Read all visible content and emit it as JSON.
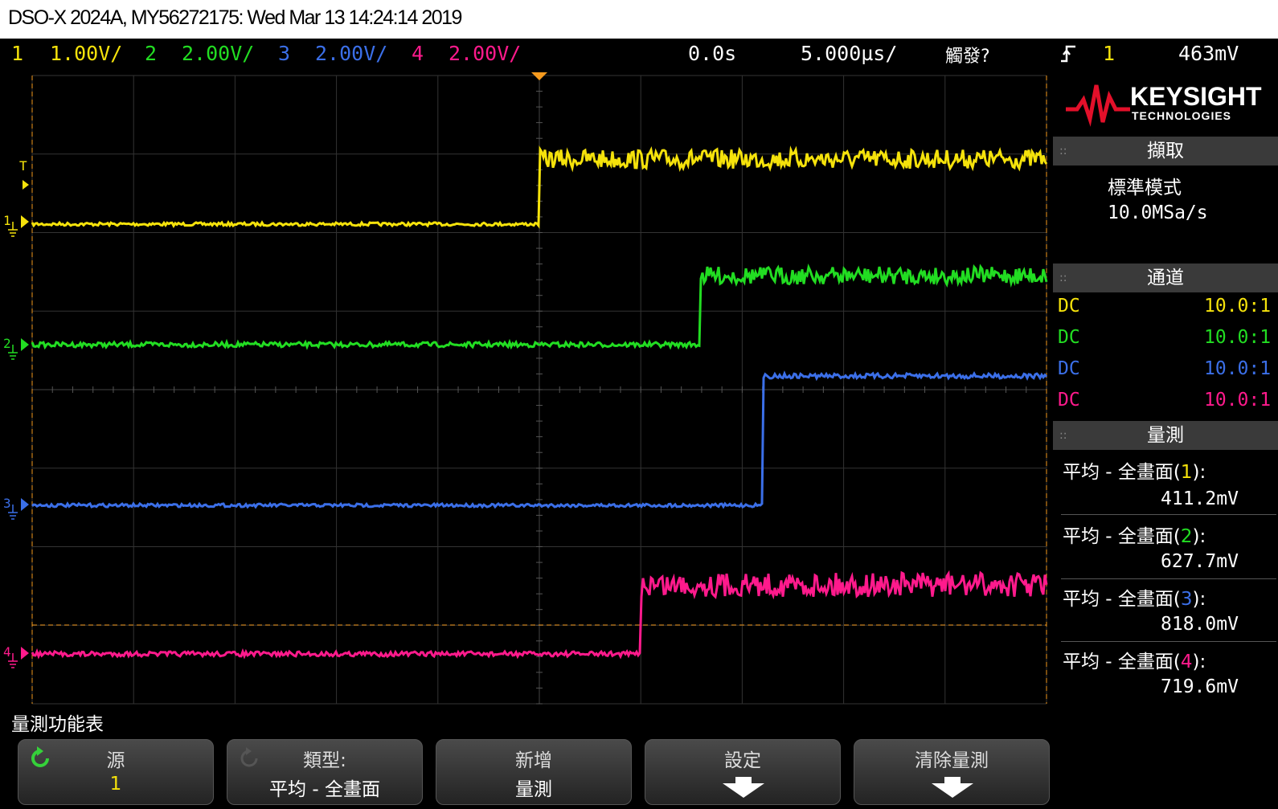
{
  "title": "DSO-X 2024A, MY56272175: Wed Mar 13 14:24:14 2019",
  "status": {
    "ch1_num": "1",
    "ch1_scale": "1.00V/",
    "ch2_num": "2",
    "ch2_scale": "2.00V/",
    "ch3_num": "3",
    "ch3_scale": "2.00V/",
    "ch4_num": "4",
    "ch4_scale": "2.00V/",
    "time_offset": "0.0s",
    "timebase": "5.000µs/",
    "trigger_status": "觸發?",
    "trigger_source": "1",
    "trigger_level": "463mV",
    "trigger_edge_icon": "rising-edge-icon"
  },
  "colors": {
    "ch1": "#f5e20b",
    "ch2": "#22dd22",
    "ch3": "#3b6fe8",
    "ch4": "#ff1a8c",
    "trigger": "#f59a1e"
  },
  "logo": {
    "brand": "KEYSIGHT",
    "sub": "TECHNOLOGIES"
  },
  "panel": {
    "acquire_header": "擷取",
    "acquire_mode": "標準模式",
    "sample_rate": "10.0MSa/s",
    "channel_header": "通道",
    "channels": [
      {
        "coupling": "DC",
        "probe": "10.0:1"
      },
      {
        "coupling": "DC",
        "probe": "10.0:1"
      },
      {
        "coupling": "DC",
        "probe": "10.0:1"
      },
      {
        "coupling": "DC",
        "probe": "10.0:1"
      }
    ],
    "measure_header": "量測",
    "measurements": [
      {
        "label": "平均 - 全畫面",
        "ch": "1",
        "value": "411.2mV"
      },
      {
        "label": "平均 - 全畫面",
        "ch": "2",
        "value": "627.7mV"
      },
      {
        "label": "平均 - 全畫面",
        "ch": "3",
        "value": "818.0mV"
      },
      {
        "label": "平均 - 全畫面",
        "ch": "4",
        "value": "719.6mV"
      }
    ]
  },
  "trace_labels": {
    "trigger_marker": "T",
    "ch1": "1",
    "ch2": "2",
    "ch3": "3",
    "ch4": "4"
  },
  "menu": {
    "title": "量測功能表",
    "softkeys": [
      {
        "top": "源",
        "bottom": "1"
      },
      {
        "top": "類型:",
        "bottom": "平均 - 全畫面"
      },
      {
        "top": "新增",
        "bottom": "量測"
      },
      {
        "top": "設定",
        "bottom": ""
      },
      {
        "top": "清除量測",
        "bottom": ""
      }
    ]
  }
}
